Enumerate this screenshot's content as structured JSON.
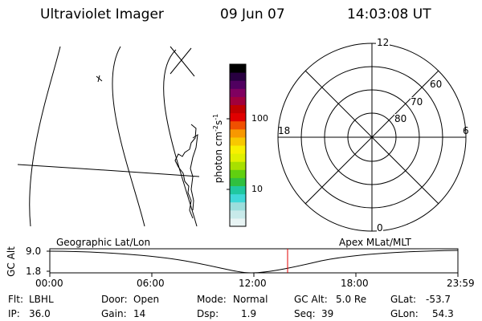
{
  "header": {
    "title": "Ultraviolet Imager",
    "date": "09 Jun 07",
    "time": "14:03:08 UT"
  },
  "colorbar": {
    "label": "photon cm-2s-1",
    "label_main": "photon cm",
    "sup1": "-2",
    "mid": "s",
    "sup2": "-1",
    "ticks": [
      "100",
      "10"
    ],
    "colors": [
      "#e8f4f4",
      "#c8eaea",
      "#9cdedc",
      "#40d8d8",
      "#20c8a0",
      "#30c040",
      "#60d010",
      "#a8e000",
      "#e0f000",
      "#f8f000",
      "#f8c800",
      "#f89800",
      "#f05000",
      "#e00000",
      "#c00000",
      "#a0003c",
      "#800060",
      "#500060",
      "#280040",
      "#000000"
    ]
  },
  "polar": {
    "labels": [
      "12",
      "18",
      "6",
      "0",
      "60",
      "70",
      "80"
    ]
  },
  "timeline": {
    "y_axis_label": "GC Alt",
    "y_ticks": [
      "9.0",
      "1.8"
    ],
    "left_label": "Geographic Lat/Lon",
    "right_label": "Apex MLat/MLT",
    "x_ticks": [
      "00:00",
      "06:00",
      "12:00",
      "18:00",
      "23:59"
    ],
    "marker_color": "#e00000"
  },
  "info": {
    "row1": [
      {
        "label": "Flt:",
        "value": "LBHL"
      },
      {
        "label": "Door:",
        "value": "Open"
      },
      {
        "label": "Mode:",
        "value": "Normal"
      },
      {
        "label": "GC Alt:",
        "value": "5.0 Re"
      },
      {
        "label": "GLat:",
        "value": "-53.7"
      }
    ],
    "row2": [
      {
        "label": "IP:",
        "value": "36.0"
      },
      {
        "label": "Gain:",
        "value": "14"
      },
      {
        "label": "Dsp:",
        "value": "1.9"
      },
      {
        "label": "Seq:",
        "value": "39"
      },
      {
        "label": "GLon:",
        "value": "54.3"
      }
    ]
  }
}
